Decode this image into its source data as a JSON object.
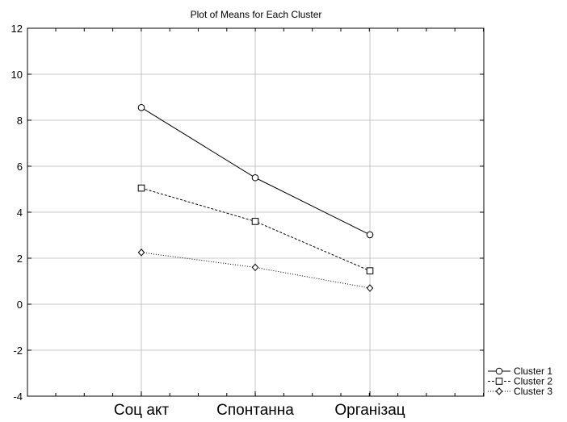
{
  "chart_data": {
    "type": "line",
    "title": "Plot of Means for Each Cluster",
    "xlabel": "",
    "ylabel": "",
    "categories": [
      "Соц акт",
      "Спонтанна",
      "Організац"
    ],
    "ylim": [
      -4,
      12
    ],
    "yticks": [
      -4,
      -2,
      0,
      2,
      4,
      6,
      8,
      10,
      12
    ],
    "grid": true,
    "legend_position": "bottom-right",
    "series": [
      {
        "name": "Cluster  1",
        "values": [
          8.55,
          5.5,
          3.02
        ],
        "marker": "circle",
        "line_style": "solid",
        "color": "#000000"
      },
      {
        "name": "Cluster  2",
        "values": [
          5.05,
          3.6,
          1.45
        ],
        "marker": "square",
        "line_style": "dashed",
        "color": "#000000"
      },
      {
        "name": "Cluster  3",
        "values": [
          2.25,
          1.6,
          0.7
        ],
        "marker": "diamond",
        "line_style": "dotted",
        "color": "#000000"
      }
    ]
  }
}
